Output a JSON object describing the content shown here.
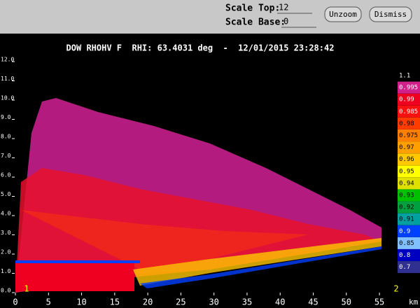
{
  "toolbar": {
    "scale_top_label": "Scale Top:",
    "scale_top": "12",
    "scale_base_label": "Scale Base:",
    "scale_base": "0",
    "buttons": [
      "Unzoom",
      "Dismiss"
    ]
  },
  "chart_data": {
    "type": "rhi",
    "title": "DOW RHOHV F  RHI: 63.4031 deg  -  12/01/2015 23:28:42",
    "x_label": "km",
    "xlim": [
      0,
      57.5
    ],
    "ylim": [
      0,
      12
    ],
    "xticks": [
      0,
      5,
      10,
      15,
      20,
      25,
      30,
      35,
      40,
      45,
      50,
      55
    ],
    "yticks": [
      {
        "value": 0,
        "label": "0.0"
      },
      {
        "value": 1,
        "label": "1.0"
      },
      {
        "value": 2,
        "label": "2.0"
      },
      {
        "value": 3,
        "label": "3.0"
      },
      {
        "value": 4,
        "label": "4.0"
      },
      {
        "value": 5,
        "label": "5.0"
      },
      {
        "value": 6,
        "label": "6.0"
      },
      {
        "value": 7,
        "label": "7.0"
      },
      {
        "value": 8,
        "label": "8.0"
      },
      {
        "value": 9,
        "label": "9.0"
      },
      {
        "value": 10,
        "label": "10.0"
      },
      {
        "value": 11,
        "label": "11.0"
      },
      {
        "value": 12,
        "label": "12.0"
      }
    ],
    "colorbar": [
      {
        "value": 1.1,
        "color": "#000000"
      },
      {
        "value": 0.995,
        "color": "#d0208c"
      },
      {
        "value": 0.99,
        "color": "#f00020"
      },
      {
        "value": 0.985,
        "color": "#ff1010"
      },
      {
        "value": 0.98,
        "color": "#ff3c00"
      },
      {
        "value": 0.975,
        "color": "#ff8000"
      },
      {
        "value": 0.97,
        "color": "#ffa000"
      },
      {
        "value": 0.96,
        "color": "#ffc800"
      },
      {
        "value": 0.95,
        "color": "#ffff00"
      },
      {
        "value": 0.94,
        "color": "#e0e000"
      },
      {
        "value": 0.93,
        "color": "#00c000"
      },
      {
        "value": 0.92,
        "color": "#00a040"
      },
      {
        "value": 0.91,
        "color": "#00a0a0"
      },
      {
        "value": 0.9,
        "color": "#0040ff"
      },
      {
        "value": 0.85,
        "color": "#80c0ff"
      },
      {
        "value": 0.8,
        "color": "#0000c0"
      },
      {
        "value": 0.7,
        "color": "#303090"
      }
    ],
    "range_markers": [
      "1",
      "2"
    ]
  }
}
